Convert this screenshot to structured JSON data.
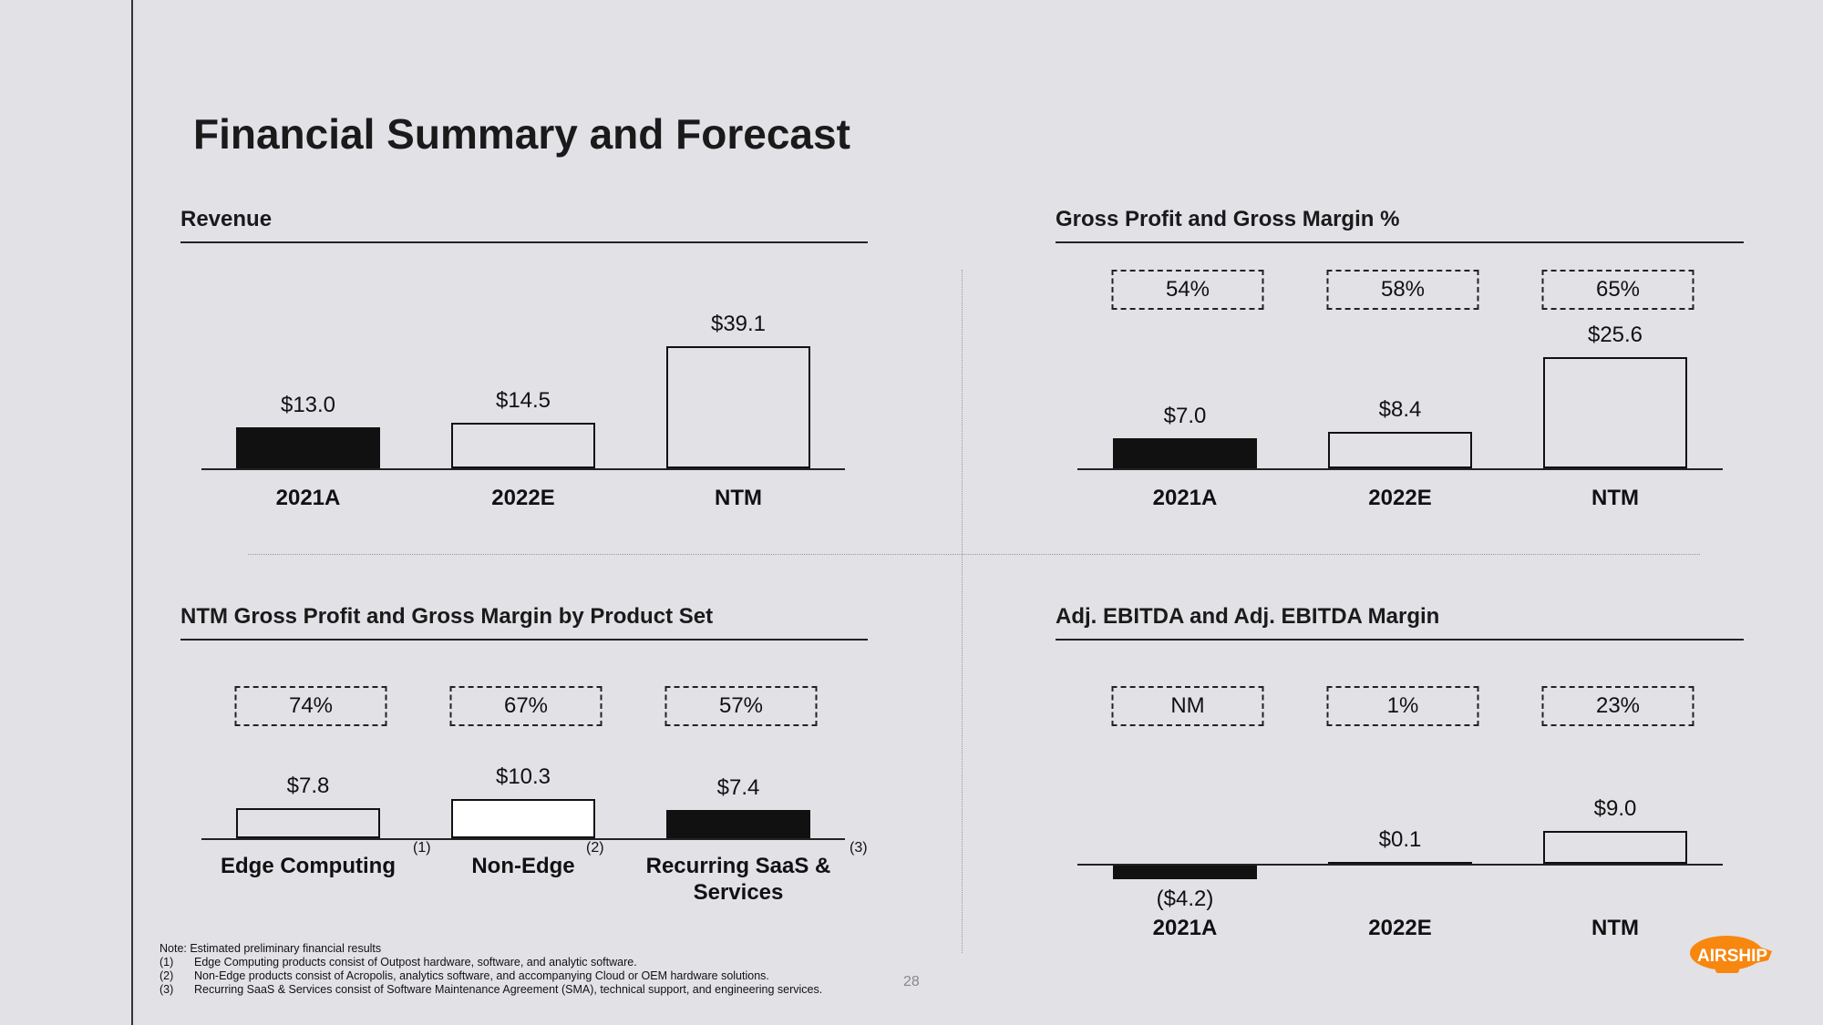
{
  "title": "Financial Summary and Forecast",
  "page_number": "28",
  "logo_text": "AIRSHIP",
  "notes": {
    "header": "Note: Estimated preliminary financial results",
    "items": [
      {
        "key": "(1)",
        "text": "Edge Computing products consist of Outpost hardware, software, and analytic software."
      },
      {
        "key": "(2)",
        "text": "Non-Edge products consist of Acropolis, analytics software, and accompanying Cloud or OEM hardware solutions."
      },
      {
        "key": "(3)",
        "text": "Recurring SaaS & Services consist of Software Maintenance Agreement (SMA), technical support, and engineering services."
      }
    ]
  },
  "chart_data": [
    {
      "type": "bar",
      "title": "Revenue",
      "categories": [
        "2021A",
        "2022E",
        "NTM"
      ],
      "values": [
        13.0,
        14.5,
        39.1
      ],
      "labels": [
        "$13.0",
        "$14.5",
        "$39.1"
      ],
      "styles": [
        "solid",
        "outline",
        "outline"
      ],
      "margins": null,
      "footnote_marks": null
    },
    {
      "type": "bar",
      "title": "Gross Profit and Gross Margin %",
      "categories": [
        "2021A",
        "2022E",
        "NTM"
      ],
      "values": [
        7.0,
        8.4,
        25.6
      ],
      "labels": [
        "$7.0",
        "$8.4",
        "$25.6"
      ],
      "styles": [
        "solid",
        "outline",
        "outline"
      ],
      "margins": [
        "54%",
        "58%",
        "65%"
      ],
      "footnote_marks": null
    },
    {
      "type": "bar",
      "title": "NTM Gross Profit and Gross Margin by Product Set",
      "categories": [
        "Edge Computing",
        "Non-Edge",
        "Recurring SaaS & Services"
      ],
      "values": [
        7.8,
        10.3,
        7.4
      ],
      "labels": [
        "$7.8",
        "$10.3",
        "$7.4"
      ],
      "styles": [
        "outline",
        "white",
        "solid"
      ],
      "margins": [
        "74%",
        "67%",
        "57%"
      ],
      "footnote_marks": [
        "(1)",
        "(2)",
        "(3)"
      ]
    },
    {
      "type": "bar",
      "title": "Adj. EBITDA and Adj. EBITDA Margin",
      "categories": [
        "2021A",
        "2022E",
        "NTM"
      ],
      "values": [
        -4.2,
        0.1,
        9.0
      ],
      "labels": [
        "($4.2)",
        "$0.1",
        "$9.0"
      ],
      "styles": [
        "solid",
        "outline",
        "outline"
      ],
      "margins": [
        "NM",
        "1%",
        "23%"
      ],
      "footnote_marks": null
    }
  ]
}
